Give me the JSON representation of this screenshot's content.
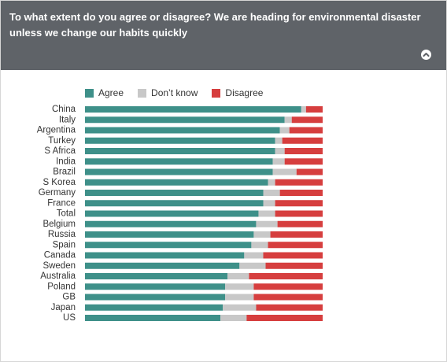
{
  "header": {
    "title": "To what extent do you agree or disagree? We are heading for environmental disaster unless we change our habits quickly",
    "collapse_icon": "chevron-up-icon"
  },
  "legend": [
    {
      "label": "Agree",
      "color": "#3e9089"
    },
    {
      "label": "Don’t know",
      "color": "#c8c8c8"
    },
    {
      "label": "Disagree",
      "color": "#d63e3e"
    }
  ],
  "chart_data": {
    "type": "bar",
    "orientation": "horizontal",
    "stacked": true,
    "percent_stacked": true,
    "categories": [
      "China",
      "Italy",
      "Argentina",
      "Turkey",
      "S Africa",
      "India",
      "Brazil",
      "S Korea",
      "Germany",
      "France",
      "Total",
      "Belgium",
      "Russia",
      "Spain",
      "Canada",
      "Sweden",
      "Australia",
      "Poland",
      "GB",
      "Japan",
      "US"
    ],
    "series": [
      {
        "name": "Agree",
        "color": "#3e9089",
        "values": [
          91,
          84,
          82,
          80,
          80,
          79,
          79,
          77,
          75,
          75,
          73,
          72,
          71,
          70,
          67,
          65,
          60,
          59,
          59,
          58,
          57
        ]
      },
      {
        "name": "Don’t know",
        "color": "#c8c8c8",
        "values": [
          2,
          3,
          4,
          3,
          4,
          5,
          10,
          3,
          7,
          5,
          7,
          9,
          7,
          7,
          8,
          11,
          9,
          12,
          12,
          14,
          11
        ]
      },
      {
        "name": "Disagree",
        "color": "#d63e3e",
        "values": [
          7,
          13,
          14,
          17,
          16,
          16,
          11,
          20,
          18,
          20,
          20,
          19,
          22,
          23,
          25,
          24,
          31,
          29,
          29,
          28,
          32
        ]
      }
    ],
    "legend_position": "top-left",
    "grid": false
  }
}
